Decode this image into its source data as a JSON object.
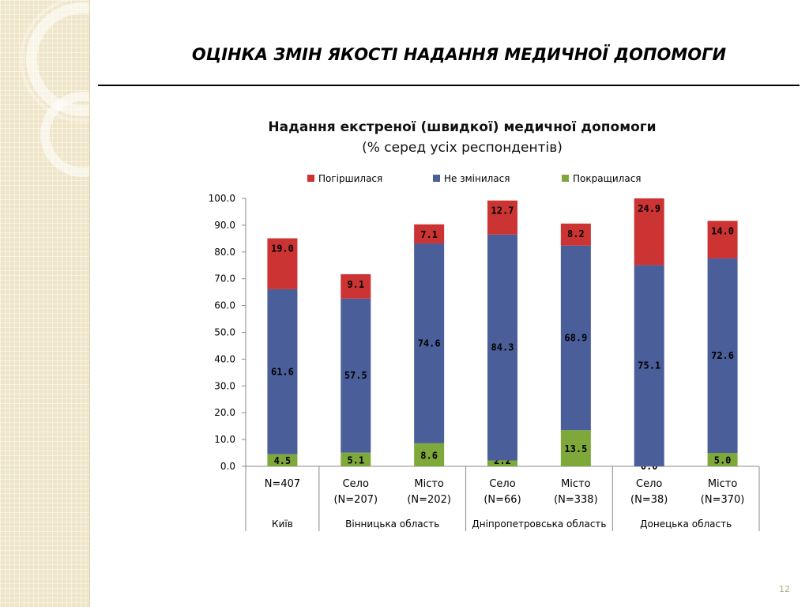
{
  "slide": {
    "title": "ОЦІНКА ЗМІН ЯКОСТІ НАДАННЯ МЕДИЧНОЇ ДОПОМОГИ",
    "page_number": "12"
  },
  "chart_data": {
    "type": "bar",
    "stacked": true,
    "title": "Надання екстреної (швидкої) медичної допомоги",
    "subtitle": "(% серед усіх респондентів)",
    "ylim": [
      0,
      100
    ],
    "yticks": [
      "0.0",
      "10.0",
      "20.0",
      "30.0",
      "40.0",
      "50.0",
      "60.0",
      "70.0",
      "80.0",
      "90.0",
      "100.0"
    ],
    "grid": false,
    "legend_position": "top",
    "categories": [
      {
        "label": "N=407",
        "group": "Київ"
      },
      {
        "label": "Село\n(N=207)",
        "group": "Вінницька область"
      },
      {
        "label": "Місто\n(N=202)",
        "group": "Вінницька область"
      },
      {
        "label": "Село\n(N=66)",
        "group": "Дніпропетровська область"
      },
      {
        "label": "Місто\n(N=338)",
        "group": "Дніпропетровська область"
      },
      {
        "label": "Село\n(N=38)",
        "group": "Донецька область"
      },
      {
        "label": "Місто\n(N=370)",
        "group": "Донецька область"
      }
    ],
    "groups": [
      {
        "name": "Київ",
        "span": 1
      },
      {
        "name": "Вінницька область",
        "span": 2
      },
      {
        "name": "Дніпропетровська область",
        "span": 2
      },
      {
        "name": "Донецька область",
        "span": 2
      }
    ],
    "series": [
      {
        "name": "Покращилася",
        "color": "#7ea83a",
        "values": [
          4.5,
          5.1,
          8.6,
          2.2,
          13.5,
          0.0,
          5.0
        ]
      },
      {
        "name": "Не змінилася",
        "color": "#4a5e9a",
        "values": [
          61.6,
          57.5,
          74.6,
          84.3,
          68.9,
          75.1,
          72.6
        ]
      },
      {
        "name": "Погіршилася",
        "color": "#cc3333",
        "values": [
          19.0,
          9.1,
          7.1,
          12.7,
          8.2,
          24.9,
          14.0
        ]
      }
    ],
    "legend_order": [
      "Погіршилася",
      "Не змінилася",
      "Покращилася"
    ]
  }
}
